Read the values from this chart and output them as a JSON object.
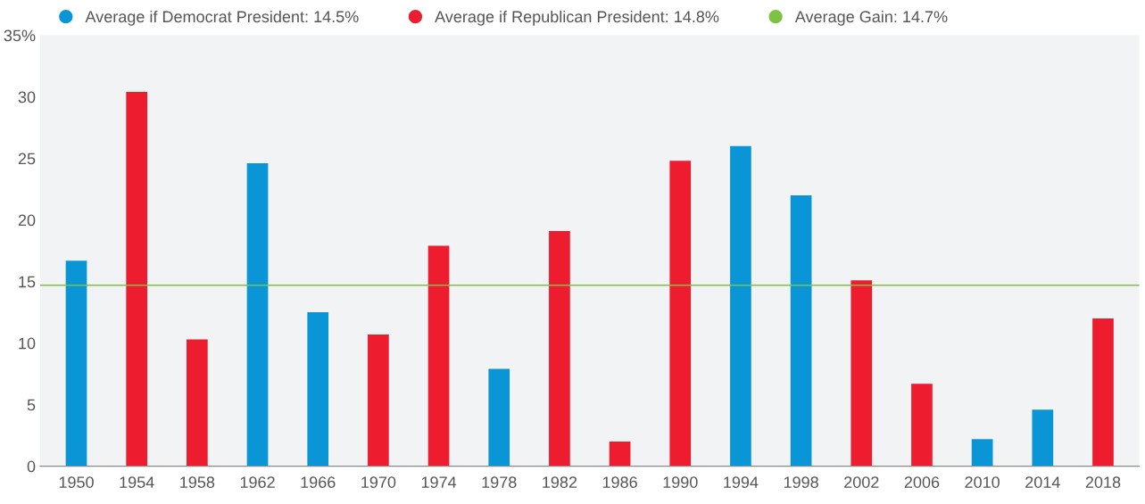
{
  "chart_data": {
    "type": "bar",
    "categories": [
      "1950",
      "1954",
      "1958",
      "1962",
      "1966",
      "1970",
      "1974",
      "1978",
      "1982",
      "1986",
      "1990",
      "1994",
      "1998",
      "2002",
      "2006",
      "2010",
      "2014",
      "2018"
    ],
    "series": [
      {
        "name": "Average if Democrat President: 14.5%",
        "color": "#0a96d6",
        "values": [
          16.7,
          null,
          null,
          24.6,
          12.5,
          null,
          null,
          7.9,
          null,
          null,
          null,
          26.0,
          22.0,
          null,
          null,
          2.2,
          4.6,
          null
        ]
      },
      {
        "name": "Average if Republican President: 14.8%",
        "color": "#ed1c2e",
        "values": [
          null,
          30.4,
          10.3,
          null,
          null,
          10.7,
          17.9,
          null,
          19.1,
          2.0,
          24.8,
          null,
          null,
          15.1,
          6.7,
          null,
          null,
          12.0
        ]
      }
    ],
    "ref_lines": [
      {
        "axis": "y",
        "value": 14.7,
        "label": "Average Gain: 14.7%",
        "color": "#7dc242"
      }
    ],
    "ylim": [
      0,
      35
    ],
    "yticks": [
      0,
      5,
      10,
      15,
      20,
      25,
      30,
      {
        "value": 35,
        "label": "35%"
      }
    ],
    "grid": false,
    "legend": "top"
  }
}
